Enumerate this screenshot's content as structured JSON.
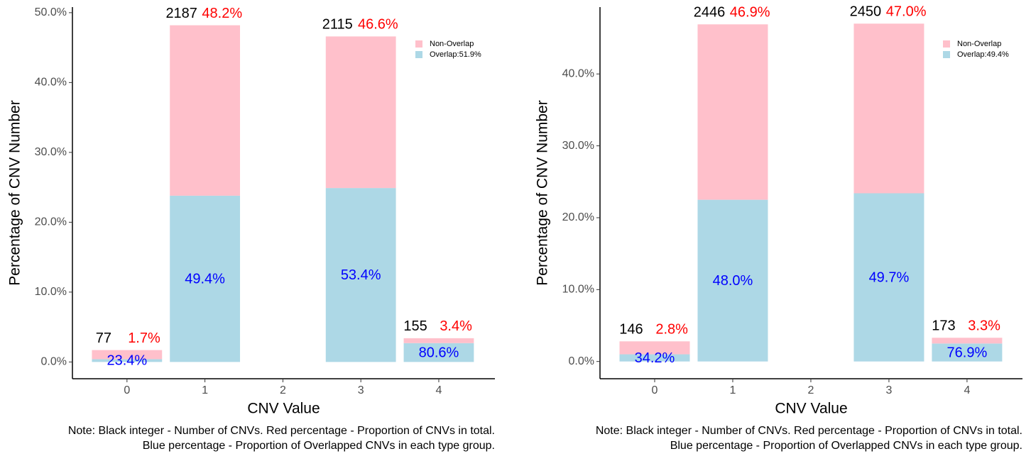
{
  "chart_data": [
    {
      "type": "bar",
      "stacked": true,
      "xlabel": "CNV Value",
      "ylabel": "Percentage of CNV Number",
      "x": [
        0,
        1,
        3,
        4
      ],
      "xlim": [
        -0.7,
        4.72
      ],
      "xticks": [
        0,
        1,
        2,
        3,
        4
      ],
      "ylim": [
        -2.4,
        50.8
      ],
      "yticks": [
        {
          "value": 0,
          "label": "0.0%"
        },
        {
          "value": 10,
          "label": "10.0%"
        },
        {
          "value": 20,
          "label": "20.0%"
        },
        {
          "value": 30,
          "label": "30.0%"
        },
        {
          "value": 40,
          "label": "40.0%"
        },
        {
          "value": 50,
          "label": "50.0%"
        }
      ],
      "series": [
        {
          "name": "Overlap:51.9%",
          "color": "#add8e6",
          "values": [
            0.4,
            23.8,
            24.9,
            2.7
          ]
        },
        {
          "name": "Non-Overlap",
          "color": "#ffc0cb",
          "values": [
            1.3,
            24.4,
            21.7,
            0.7
          ]
        }
      ],
      "counts": [
        77,
        2187,
        2115,
        155
      ],
      "total_labels": [
        "1.7%",
        "48.2%",
        "46.6%",
        "3.4%"
      ],
      "overlap_labels": [
        "23.4%",
        "49.4%",
        "53.4%",
        "80.6%"
      ],
      "note": [
        "Note: Black integer - Number of CNVs. Red percentage - Proportion of CNVs in total.",
        "Blue percentage - Proportion of Overlapped CNVs in each type group."
      ]
    },
    {
      "type": "bar",
      "stacked": true,
      "xlabel": "CNV Value",
      "ylabel": "Percentage of CNV Number",
      "x": [
        0,
        1,
        3,
        4
      ],
      "xlim": [
        -0.7,
        4.71
      ],
      "xticks": [
        0,
        1,
        2,
        3,
        4
      ],
      "ylim": [
        -2.4,
        49.3
      ],
      "yticks": [
        {
          "value": 0,
          "label": "0.0%"
        },
        {
          "value": 10,
          "label": "10.0%"
        },
        {
          "value": 20,
          "label": "20.0%"
        },
        {
          "value": 30,
          "label": "30.0%"
        },
        {
          "value": 40,
          "label": "40.0%"
        }
      ],
      "series": [
        {
          "name": "Overlap:49.4%",
          "color": "#add8e6",
          "values": [
            1.0,
            22.5,
            23.4,
            2.5
          ]
        },
        {
          "name": "Non-Overlap",
          "color": "#ffc0cb",
          "values": [
            1.8,
            24.4,
            23.6,
            0.8
          ]
        }
      ],
      "counts": [
        146,
        2446,
        2450,
        173
      ],
      "total_labels": [
        "2.8%",
        "46.9%",
        "47.0%",
        "3.3%"
      ],
      "overlap_labels": [
        "34.2%",
        "48.0%",
        "49.7%",
        "76.9%"
      ],
      "note": [
        "Note: Black integer - Number of CNVs. Red percentage - Proportion of CNVs in total.",
        "Blue percentage - Proportion of Overlapped CNVs in each type group."
      ]
    }
  ]
}
